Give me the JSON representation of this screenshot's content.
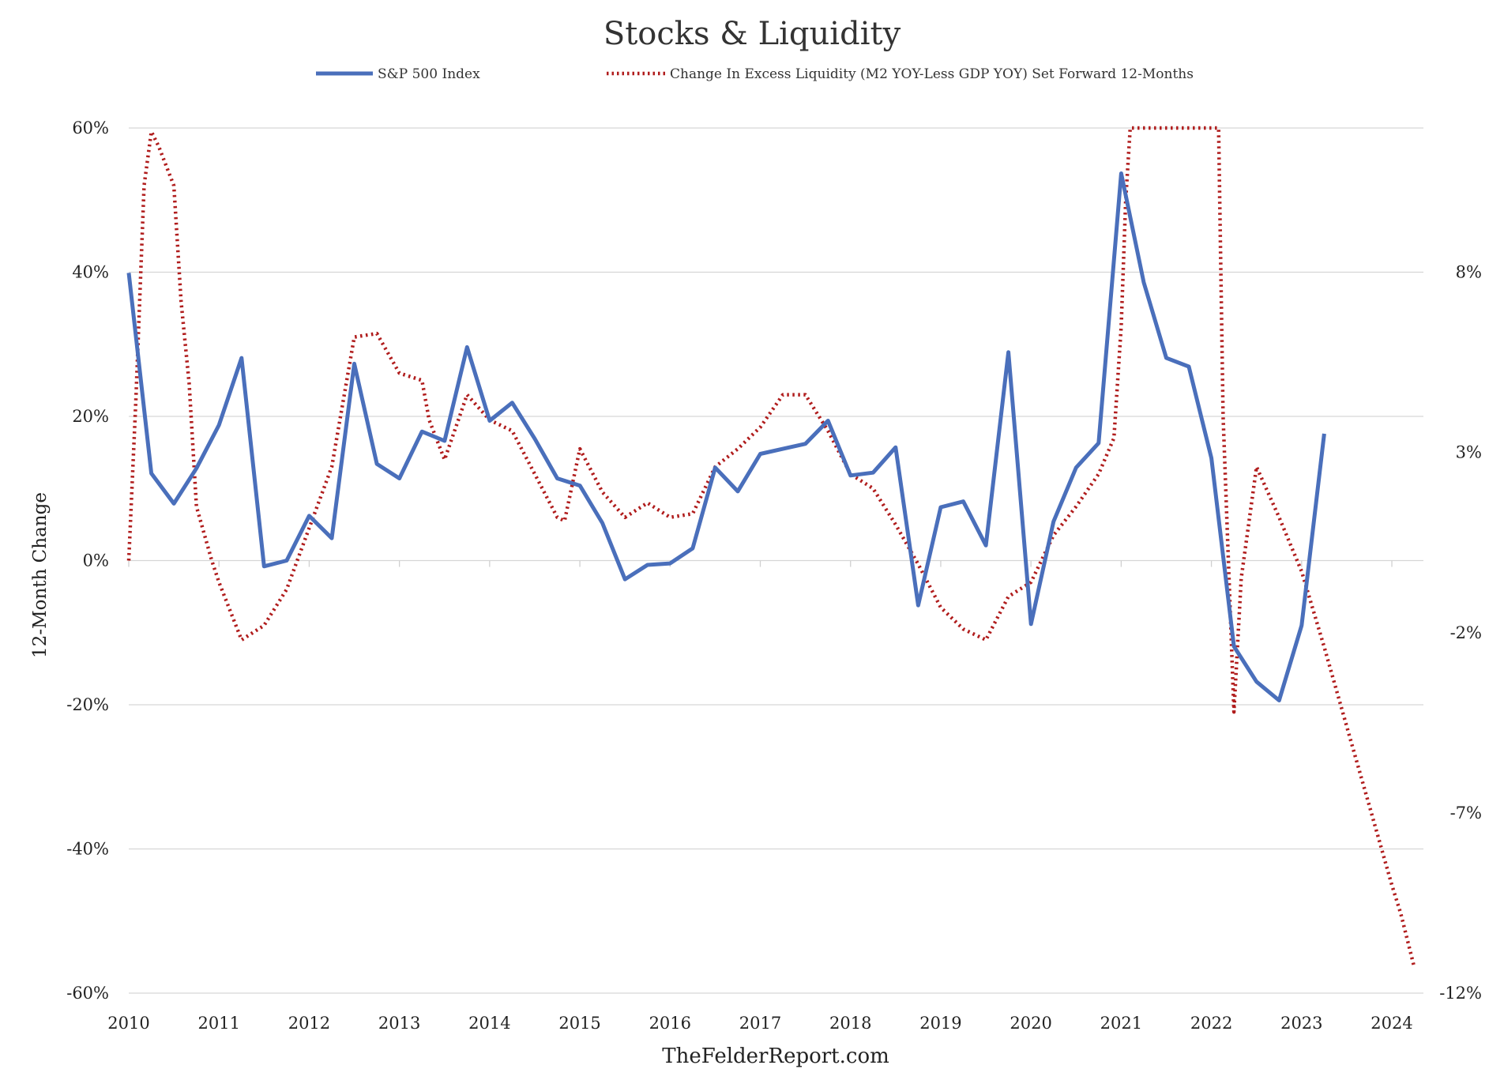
{
  "chart_data": {
    "type": "line",
    "title": "Stocks & Liquidity",
    "ylabel": "12-Month Change",
    "footer": "TheFelderReport.com",
    "x_tick_labels": [
      "2010",
      "2011",
      "2012",
      "2013",
      "2014",
      "2015",
      "2016",
      "2017",
      "2018",
      "2019",
      "2020",
      "2021",
      "2022",
      "2023",
      "2024"
    ],
    "xlim": [
      2010.0,
      2024.35
    ],
    "left_axis": {
      "ylim": [
        -60,
        60
      ],
      "ticks": [
        -60,
        -40,
        -20,
        0,
        20,
        40,
        60
      ],
      "tick_labels": [
        "-60%",
        "-40%",
        "-20%",
        "0%",
        "20%",
        "40%",
        "60%"
      ]
    },
    "right_axis": {
      "ylim": [
        -12,
        12
      ],
      "ticks": [
        -12,
        -7,
        -2,
        3,
        8
      ],
      "tick_labels": [
        "-12%",
        "-7%",
        "-2%",
        "3%",
        "8%"
      ]
    },
    "grid": true,
    "legend_position": "top",
    "series": [
      {
        "name": "S&P 500 Index",
        "axis": "left",
        "style": "solid",
        "color": "#4a6fbb",
        "x": [
          2010.0,
          2010.25,
          2010.5,
          2010.75,
          2011.0,
          2011.25,
          2011.5,
          2011.75,
          2012.0,
          2012.25,
          2012.5,
          2012.75,
          2013.0,
          2013.25,
          2013.5,
          2013.75,
          2014.0,
          2014.25,
          2014.5,
          2014.75,
          2015.0,
          2015.25,
          2015.5,
          2015.75,
          2016.0,
          2016.25,
          2016.5,
          2016.75,
          2017.0,
          2017.25,
          2017.5,
          2017.75,
          2018.0,
          2018.25,
          2018.5,
          2018.75,
          2019.0,
          2019.25,
          2019.5,
          2019.75,
          2020.0,
          2020.25,
          2020.5,
          2020.75,
          2021.0,
          2021.25,
          2021.5,
          2021.75,
          2022.0,
          2022.25,
          2022.5,
          2022.75,
          2023.0,
          2023.25
        ],
        "y": [
          39.9,
          12.1,
          7.9,
          12.8,
          18.8,
          28.1,
          -0.8,
          0.0,
          6.2,
          3.1,
          27.3,
          13.4,
          11.4,
          17.9,
          16.6,
          29.6,
          19.4,
          21.9,
          16.9,
          11.4,
          10.4,
          5.2,
          -2.6,
          -0.6,
          -0.4,
          1.7,
          12.9,
          9.6,
          14.8,
          15.5,
          16.2,
          19.4,
          11.8,
          12.2,
          15.7,
          -6.2,
          7.4,
          8.2,
          2.1,
          28.9,
          -8.8,
          5.4,
          12.9,
          16.3,
          53.7,
          38.6,
          28.1,
          26.9,
          14.2,
          -11.9,
          -16.8,
          -19.4,
          -9.0,
          17.6
        ]
      },
      {
        "name": "Change In Excess Liquidity (M2 YOY-Less GDP YOY) Set Forward 12-Months",
        "axis": "right",
        "style": "dotted",
        "color": "#b01c1c",
        "x": [
          2010.0,
          2010.08,
          2010.17,
          2010.25,
          2010.33,
          2010.5,
          2010.58,
          2010.67,
          2010.75,
          2010.92,
          2011.0,
          2011.25,
          2011.5,
          2011.75,
          2012.0,
          2012.25,
          2012.5,
          2012.75,
          2013.0,
          2013.25,
          2013.33,
          2013.5,
          2013.75,
          2014.0,
          2014.25,
          2014.5,
          2014.75,
          2014.83,
          2015.0,
          2015.25,
          2015.5,
          2015.75,
          2016.0,
          2016.25,
          2016.5,
          2016.75,
          2017.0,
          2017.25,
          2017.5,
          2017.75,
          2018.0,
          2018.25,
          2018.5,
          2018.75,
          2019.0,
          2019.25,
          2019.5,
          2019.75,
          2020.0,
          2020.25,
          2020.5,
          2020.75,
          2020.92,
          2021.0,
          2021.05,
          2021.1,
          2022.08,
          2022.13,
          2022.25,
          2022.33,
          2022.5,
          2022.75,
          2023.0,
          2023.25,
          2023.5,
          2023.75,
          2024.0,
          2024.1,
          2024.25
        ],
        "y": [
          0.0,
          4.5,
          10.4,
          11.9,
          11.5,
          10.4,
          7.2,
          4.9,
          1.5,
          0.0,
          -0.6,
          -2.2,
          -1.8,
          -0.8,
          0.9,
          2.6,
          6.2,
          6.3,
          5.2,
          5.0,
          3.9,
          2.8,
          4.6,
          3.9,
          3.6,
          2.4,
          1.2,
          1.1,
          3.1,
          1.9,
          1.2,
          1.6,
          1.2,
          1.3,
          2.6,
          3.1,
          3.7,
          4.6,
          4.6,
          3.6,
          2.4,
          2.0,
          1.0,
          -0.1,
          -1.3,
          -1.9,
          -2.2,
          -1.0,
          -0.6,
          0.7,
          1.5,
          2.4,
          3.4,
          6.5,
          10.0,
          12.0,
          12.0,
          4.0,
          -4.2,
          -0.5,
          2.6,
          1.2,
          -0.3,
          -2.4,
          -4.6,
          -6.8,
          -9.0,
          -9.8,
          -11.3
        ]
      }
    ]
  }
}
